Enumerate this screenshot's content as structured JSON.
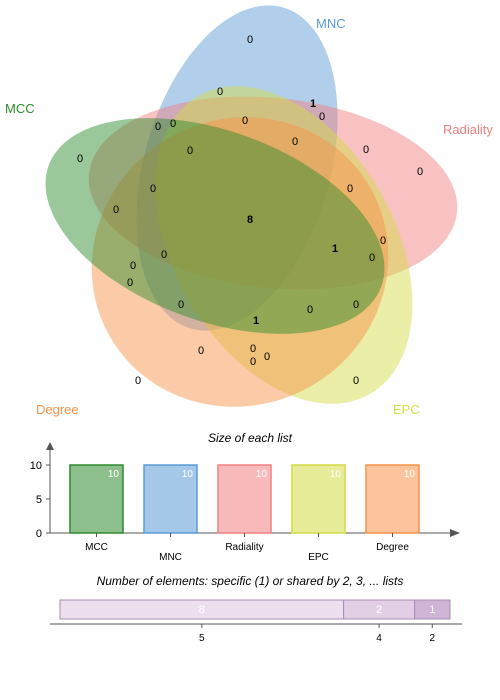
{
  "venn": {
    "sets": [
      {
        "name": "MNC",
        "color": "#5b9bd5"
      },
      {
        "name": "Radiality",
        "color": "#f08080"
      },
      {
        "name": "EPC",
        "color": "#d4dc46"
      },
      {
        "name": "Degree",
        "color": "#f7934a"
      },
      {
        "name": "MCC",
        "color": "#2e8b2e"
      }
    ],
    "region_counts": [
      {
        "text": "0"
      },
      {
        "text": "0"
      },
      {
        "text": "1"
      },
      {
        "text": "0"
      },
      {
        "text": "0"
      },
      {
        "text": "0"
      },
      {
        "text": "0"
      },
      {
        "text": "0"
      },
      {
        "text": "0"
      },
      {
        "text": "0"
      },
      {
        "text": "0"
      },
      {
        "text": "0"
      },
      {
        "text": "0"
      },
      {
        "text": "0"
      },
      {
        "text": "8"
      },
      {
        "text": "0"
      },
      {
        "text": "0"
      },
      {
        "text": "1"
      },
      {
        "text": "0"
      },
      {
        "text": "0"
      },
      {
        "text": "0"
      },
      {
        "text": "0"
      },
      {
        "text": "0"
      },
      {
        "text": "0"
      },
      {
        "text": "0"
      },
      {
        "text": "1"
      },
      {
        "text": "0"
      },
      {
        "text": "0"
      },
      {
        "text": "0"
      },
      {
        "text": "0"
      },
      {
        "text": "0"
      },
      {
        "text": "0"
      }
    ]
  },
  "chart_data": [
    {
      "type": "bar",
      "title": "Size of each list",
      "categories": [
        "MCC",
        "MNC",
        "Radiality",
        "EPC",
        "Degree"
      ],
      "values": [
        10,
        10,
        10,
        10,
        10
      ],
      "colors": [
        "#2e8b2e",
        "#5b9bd5",
        "#f08080",
        "#d4dc46",
        "#f7934a"
      ],
      "yticks": [
        0,
        5,
        10
      ],
      "ylim": [
        0,
        10
      ]
    },
    {
      "type": "bar",
      "orientation": "horizontal-stacked",
      "title": "Number of elements: specific (1) or shared by 2, 3, ... lists",
      "segments": [
        {
          "shared_by": 5,
          "count": 8
        },
        {
          "shared_by": 4,
          "count": 2
        },
        {
          "shared_by": 2,
          "count": 1
        }
      ]
    }
  ]
}
